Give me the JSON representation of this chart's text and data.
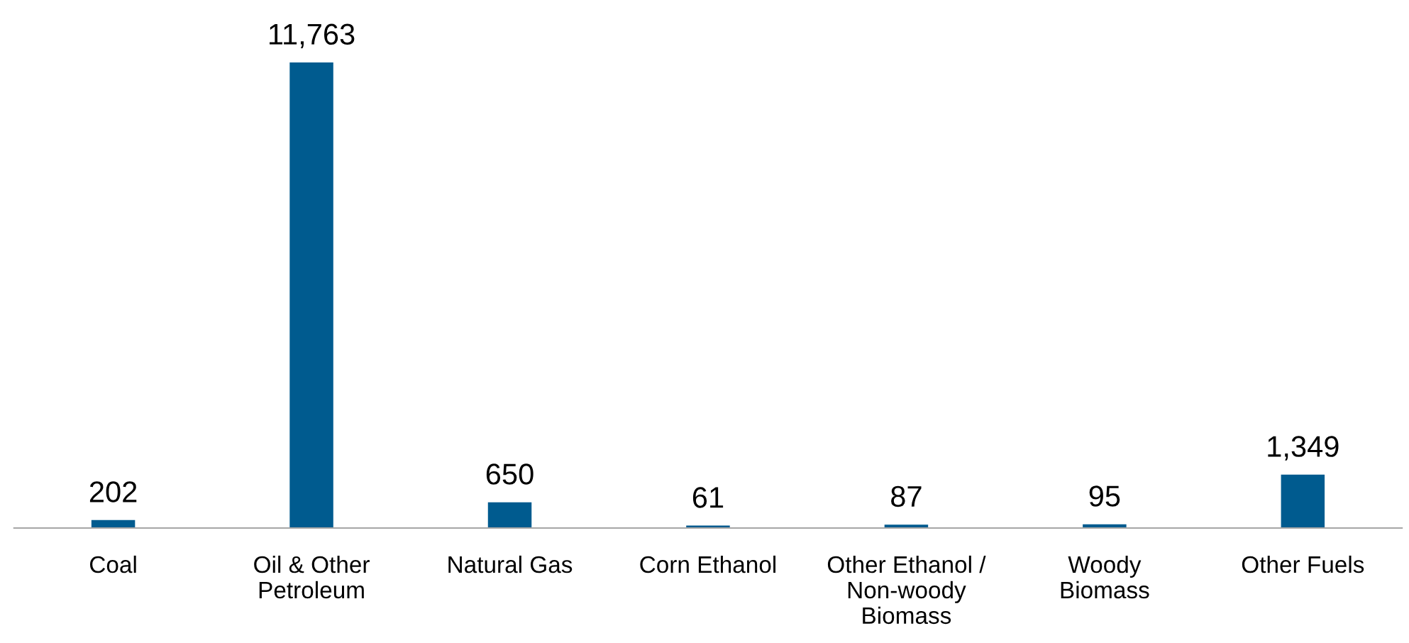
{
  "chart_data": {
    "type": "bar",
    "categories": [
      "Coal",
      "Oil & Other\nPetroleum",
      "Natural Gas",
      "Corn Ethanol",
      "Other Ethanol /\nNon-woody\nBiomass",
      "Woody\nBiomass",
      "Other Fuels"
    ],
    "values": [
      202,
      11763,
      650,
      61,
      87,
      95,
      1349
    ],
    "value_labels": [
      "202",
      "11,763",
      "650",
      "61",
      "87",
      "95",
      "1,349"
    ],
    "color": "#005b8f",
    "grid": false,
    "legend": false
  }
}
